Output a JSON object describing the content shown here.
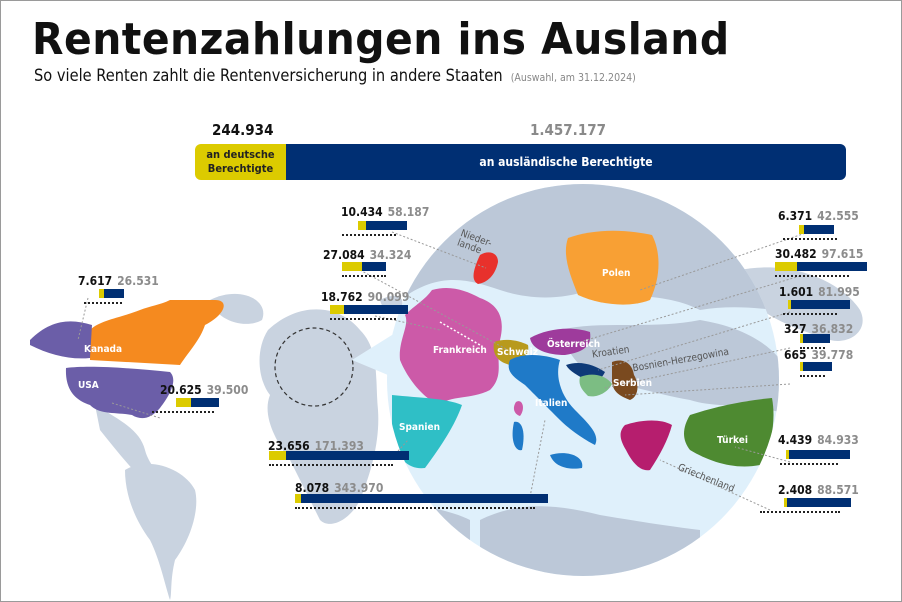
{
  "header": {
    "title": "Rentenzahlungen ins Ausland",
    "subtitle": "So viele Renten zahlt die Rentenversicherung in andere Staaten",
    "subtitle_note": "(Auswahl, am 31.12.2024)"
  },
  "totals": {
    "german_value": "244.934",
    "german_label_line1": "an deutsche",
    "german_label_line2": "Berechtigte",
    "foreign_value": "1.457.177",
    "foreign_label": "an ausländische Berechtigte"
  },
  "colors": {
    "german": "#dccb00",
    "foreign": "#002f73",
    "land": "#c3cedc",
    "sea": "#dff0fb"
  },
  "legend": {
    "german_meaning": "an deutsche Berechtigte",
    "foreign_meaning": "an ausländische Berechtigte"
  },
  "countries": [
    {
      "name": "Kanada",
      "german": "7.617",
      "foreign": "26.531"
    },
    {
      "name": "USA",
      "german": "20.625",
      "foreign": "39.500"
    },
    {
      "name": "Niederlande",
      "german": "10.434",
      "foreign": "58.187"
    },
    {
      "name": "Schweiz",
      "german": "27.084",
      "foreign": "34.324"
    },
    {
      "name": "Frankreich",
      "german": "18.762",
      "foreign": "90.099"
    },
    {
      "name": "Spanien",
      "german": "23.656",
      "foreign": "171.393"
    },
    {
      "name": "Italien",
      "german": "8.078",
      "foreign": "343.970"
    },
    {
      "name": "Polen",
      "german": "6.371",
      "foreign": "42.555"
    },
    {
      "name": "Österreich",
      "german": "30.482",
      "foreign": "97.615"
    },
    {
      "name": "Kroatien",
      "german": "1.601",
      "foreign": "81.995"
    },
    {
      "name": "Bosnien-Herzegowina",
      "german": "327",
      "foreign": "36.832"
    },
    {
      "name": "Serbien",
      "german": "665",
      "foreign": "39.778"
    },
    {
      "name": "Türkei",
      "german": "4.439",
      "foreign": "84.933"
    },
    {
      "name": "Griechenland",
      "german": "2.408",
      "foreign": "88.571"
    }
  ],
  "map_labels": {
    "kanada": "Kanada",
    "usa": "USA",
    "niederlande_1": "Nieder-",
    "niederlande_2": "lande",
    "frankreich": "Frankreich",
    "schweiz": "Schweiz",
    "oesterreich": "Österreich",
    "polen": "Polen",
    "kroatien": "Kroatien",
    "bosnien": "Bosnien-Herzegowina",
    "serbien": "Serbien",
    "italien": "Italien",
    "spanien": "Spanien",
    "tuerkei": "Türkei",
    "griechenland": "Griechenland"
  },
  "chart_data": {
    "type": "bar",
    "title": "Rentenzahlungen ins Ausland",
    "subtitle": "So viele Renten zahlt die Rentenversicherung in andere Staaten (Auswahl, am 31.12.2024)",
    "layout": "stacked horizontal bars placed on a map",
    "categories": [
      "Kanada",
      "USA",
      "Niederlande",
      "Schweiz",
      "Frankreich",
      "Spanien",
      "Italien",
      "Polen",
      "Österreich",
      "Kroatien",
      "Bosnien-Herzegowina",
      "Serbien",
      "Türkei",
      "Griechenland"
    ],
    "series": [
      {
        "name": "an deutsche Berechtigte",
        "color": "#dccb00",
        "values": [
          7617,
          20625,
          10434,
          27084,
          18762,
          23656,
          8078,
          6371,
          30482,
          1601,
          327,
          665,
          4439,
          2408
        ]
      },
      {
        "name": "an ausländische Berechtigte",
        "color": "#002f73",
        "values": [
          26531,
          39500,
          58187,
          34324,
          90099,
          171393,
          343970,
          42555,
          97615,
          81995,
          36832,
          39778,
          84933,
          88571
        ]
      }
    ],
    "totals": {
      "an deutsche Berechtigte": 244934,
      "an ausländische Berechtigte": 1457177
    },
    "xlabel": "",
    "ylabel": ""
  }
}
